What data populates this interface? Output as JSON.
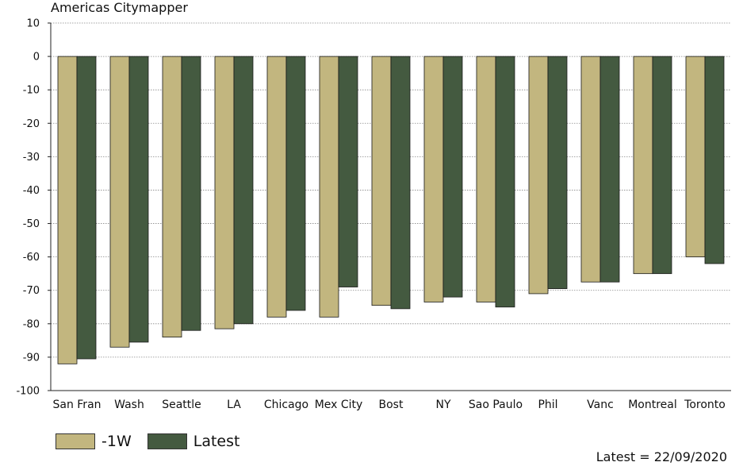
{
  "chart_data": {
    "type": "bar",
    "title": "Americas Citymapper",
    "categories": [
      "San Fran",
      "Wash",
      "Seattle",
      "LA",
      "Chicago",
      "Mex City",
      "Bost",
      "NY",
      "Sao Paulo",
      "Phil",
      "Vanc",
      "Montreal",
      "Toronto"
    ],
    "series": [
      {
        "name": "-1W",
        "color": "#c2b67f",
        "values": [
          -92,
          -87,
          -84,
          -81.5,
          -78,
          -78,
          -74.5,
          -73.5,
          -73.5,
          -71,
          -67.5,
          -65,
          -60
        ]
      },
      {
        "name": "Latest",
        "color": "#445a40",
        "values": [
          -90.5,
          -85.5,
          -82,
          -80,
          -76,
          -69,
          -75.5,
          -72,
          -75,
          -69.5,
          -67.5,
          -65,
          -62
        ]
      }
    ],
    "ylim": [
      -100,
      10
    ],
    "yticks": [
      10,
      0,
      -10,
      -20,
      -30,
      -40,
      -50,
      -60,
      -70,
      -80,
      -90,
      -100
    ],
    "grid": true,
    "legend_position": "bottom-left",
    "note": "Latest = 22/09/2020"
  }
}
